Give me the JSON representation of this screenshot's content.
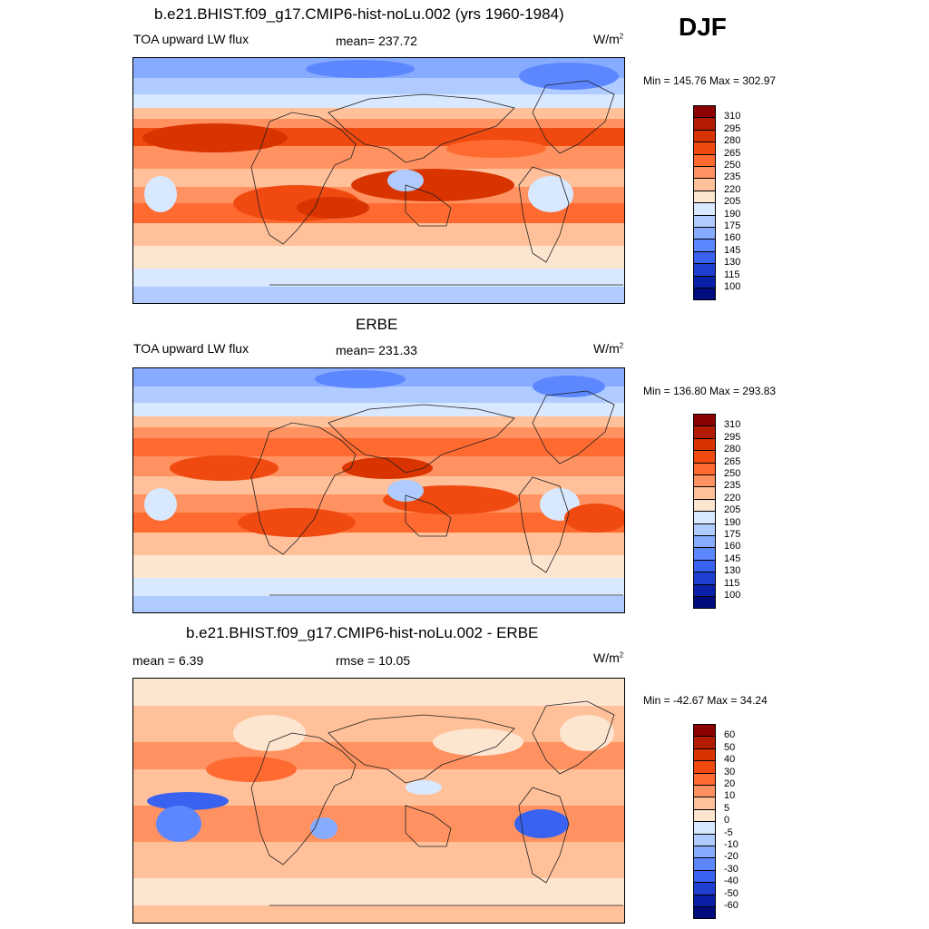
{
  "season": "DJF",
  "panels": [
    {
      "title": "b.e21.BHIST.f09_g17.CMIP6-hist-noLu.002 (yrs 1960-1984)",
      "left": "TOA upward LW flux",
      "center": "mean= 237.72",
      "units": "W/m",
      "units_sup": "2",
      "minmax": "Min = 145.76 Max = 302.97"
    },
    {
      "title": "ERBE",
      "left": "TOA upward LW flux",
      "center": "mean= 231.33",
      "units": "W/m",
      "units_sup": "2",
      "minmax": "Min = 136.80 Max = 293.83"
    },
    {
      "title": "b.e21.BHIST.f09_g17.CMIP6-hist-noLu.002 - ERBE",
      "left": "mean =   6.39",
      "center": "rmse =  10.05",
      "units": "W/m",
      "units_sup": "2",
      "minmax": "Min = -42.67 Max =  34.24"
    }
  ],
  "chart_data": [
    {
      "type": "heatmap",
      "field": "TOA upward LW flux",
      "colorbar_labels": [
        "310",
        "295",
        "280",
        "265",
        "250",
        "235",
        "220",
        "205",
        "190",
        "175",
        "160",
        "145",
        "130",
        "115",
        "100"
      ],
      "colorbar_colors": [
        "#8b0000",
        "#b31c00",
        "#d93300",
        "#f04a10",
        "#ff6a30",
        "#ff9260",
        "#ffc09a",
        "#fde6d0",
        "#d8e8ff",
        "#b0cbff",
        "#86abff",
        "#5d87ff",
        "#3a62f0",
        "#1e3fd0",
        "#0a20a8",
        "#000b7c"
      ],
      "range": [
        145.76,
        302.97
      ]
    },
    {
      "type": "heatmap",
      "field": "TOA upward LW flux",
      "colorbar_labels": [
        "310",
        "295",
        "280",
        "265",
        "250",
        "235",
        "220",
        "205",
        "190",
        "175",
        "160",
        "145",
        "130",
        "115",
        "100"
      ],
      "colorbar_colors": [
        "#8b0000",
        "#b31c00",
        "#d93300",
        "#f04a10",
        "#ff6a30",
        "#ff9260",
        "#ffc09a",
        "#fde6d0",
        "#d8e8ff",
        "#b0cbff",
        "#86abff",
        "#5d87ff",
        "#3a62f0",
        "#1e3fd0",
        "#0a20a8",
        "#000b7c"
      ],
      "range": [
        136.8,
        293.83
      ]
    },
    {
      "type": "heatmap",
      "field": "difference",
      "colorbar_labels": [
        "60",
        "50",
        "40",
        "30",
        "20",
        "10",
        "5",
        "0",
        "-5",
        "-10",
        "-20",
        "-30",
        "-40",
        "-50",
        "-60"
      ],
      "colorbar_colors": [
        "#8b0000",
        "#b31c00",
        "#d93300",
        "#f04a10",
        "#ff6a30",
        "#ff9260",
        "#ffc09a",
        "#fde6d0",
        "#d8e8ff",
        "#b0cbff",
        "#86abff",
        "#5d87ff",
        "#3a62f0",
        "#1e3fd0",
        "#0a20a8",
        "#000b7c"
      ],
      "range": [
        -42.67,
        34.24
      ]
    }
  ]
}
